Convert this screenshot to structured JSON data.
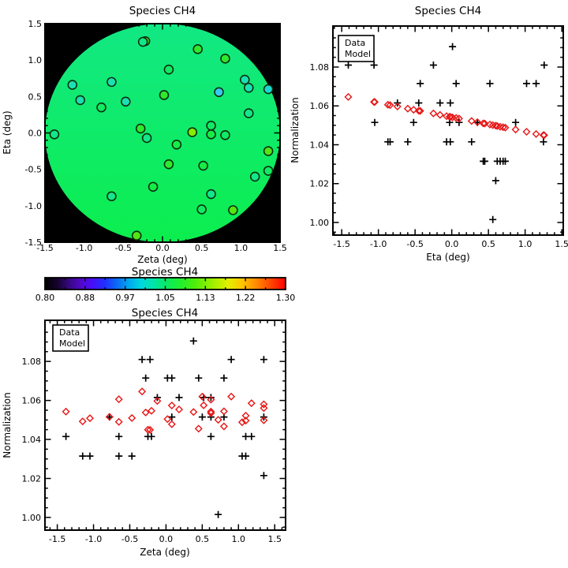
{
  "figure": {
    "background": "#ffffff",
    "frame_color": "#000000",
    "legend": {
      "data_label": "Data",
      "model_label": "Model",
      "data_color": "#000000",
      "model_color": "#e81414"
    }
  },
  "chart_data": [
    {
      "id": "field_map",
      "type": "scatter",
      "title": "Species CH4",
      "xlabel": "Zeta (deg)",
      "ylabel": "Eta (deg)",
      "xlim": [
        -1.5,
        1.5
      ],
      "ylim": [
        -1.5,
        1.5
      ],
      "x_ticks": [
        -1.5,
        -1.0,
        -0.5,
        0.0,
        0.5,
        1.0,
        1.5
      ],
      "y_ticks": [
        -1.5,
        -1.0,
        -0.5,
        0.0,
        0.5,
        1.0,
        1.5
      ],
      "x_tick_labels": [
        "-1.5",
        "-1.0",
        "-0.5",
        "0.0",
        "0.5",
        "1.0",
        "1.5"
      ],
      "y_tick_labels": [
        "-1.5",
        "-1.0",
        "-0.5",
        "0.0",
        "0.5",
        "1.0",
        "1.5"
      ],
      "minor_step": 0.1,
      "background": "#000000",
      "disk": {
        "cx": 0.0,
        "cy": 0.0,
        "rx": 1.5,
        "ry": 1.5,
        "color_top": "#12e884",
        "color_bottom": "#0cee4e"
      },
      "marker": {
        "shape": "circle",
        "outline": "#0a300f",
        "radius_px": 5.5
      },
      "points": [
        [
          -0.22,
          1.26,
          "#55e414"
        ],
        [
          -0.25,
          1.25,
          "#12e88a"
        ],
        [
          0.45,
          1.15,
          "#2fe930"
        ],
        [
          0.8,
          1.02,
          "#2fe930"
        ],
        [
          0.08,
          0.87,
          "#10ea64"
        ],
        [
          -0.65,
          0.7,
          "#1ce0b4"
        ],
        [
          -1.15,
          0.66,
          "#1ce0b4"
        ],
        [
          1.05,
          0.73,
          "#1ce0b4"
        ],
        [
          0.72,
          0.56,
          "#38c8f0"
        ],
        [
          1.1,
          0.62,
          "#1ce0b4"
        ],
        [
          1.35,
          0.6,
          "#1cd8d0"
        ],
        [
          0.02,
          0.52,
          "#2fe930"
        ],
        [
          -1.05,
          0.45,
          "#1ce0b4"
        ],
        [
          -0.47,
          0.43,
          "#1ce0b4"
        ],
        [
          -0.78,
          0.35,
          "#10ea64"
        ],
        [
          1.1,
          0.27,
          "#12e88a"
        ],
        [
          0.62,
          0.1,
          "#10ea64"
        ],
        [
          -0.28,
          0.06,
          "#2fe930"
        ],
        [
          0.38,
          0.01,
          "#86ec00"
        ],
        [
          0.62,
          -0.02,
          "#16ec46"
        ],
        [
          0.8,
          -0.03,
          "#10ea64"
        ],
        [
          -1.38,
          -0.02,
          "#12e88a"
        ],
        [
          -0.2,
          -0.07,
          "#12e88a"
        ],
        [
          0.18,
          -0.16,
          "#16ec46"
        ],
        [
          1.35,
          -0.25,
          "#55e414"
        ],
        [
          0.08,
          -0.43,
          "#2fe930"
        ],
        [
          0.52,
          -0.45,
          "#16ec46"
        ],
        [
          1.35,
          -0.52,
          "#10ea64"
        ],
        [
          1.18,
          -0.6,
          "#12e88a"
        ],
        [
          -0.12,
          -0.74,
          "#16ec46"
        ],
        [
          0.62,
          -0.84,
          "#12e88a"
        ],
        [
          -0.65,
          -0.87,
          "#12e88a"
        ],
        [
          0.5,
          -1.05,
          "#10ea64"
        ],
        [
          0.9,
          -1.06,
          "#55e414"
        ],
        [
          -0.33,
          -1.41,
          "#55e414"
        ]
      ]
    },
    {
      "id": "norm_vs_eta",
      "type": "scatter",
      "title": "Species CH4",
      "xlabel": "Eta (deg)",
      "ylabel": "Normalization",
      "xlim": [
        -1.62,
        1.52
      ],
      "ylim": [
        0.9935,
        1.1011
      ],
      "x_ticks": [
        -1.5,
        -1.0,
        -0.5,
        0.0,
        0.5,
        1.0,
        1.5
      ],
      "y_ticks": [
        1.0,
        1.02,
        1.04,
        1.06,
        1.08
      ],
      "x_tick_labels": [
        "-1.5",
        "-1.0",
        "-0.5",
        "0.0",
        "0.5",
        "1.0",
        "1.5"
      ],
      "y_tick_labels": [
        "1.00",
        "1.02",
        "1.04",
        "1.06",
        "1.08"
      ],
      "minor_step": 0.1,
      "y_minor_step": 0.005,
      "legend_position": "top-left",
      "series": [
        {
          "name": "Data",
          "marker": "plus",
          "color": "#000000",
          "points": [
            [
              1.26,
              1.081
            ],
            [
              1.25,
              1.0415
            ],
            [
              1.15,
              1.0715
            ],
            [
              1.02,
              1.0715
            ],
            [
              0.87,
              1.0515
            ],
            [
              0.7,
              1.0315
            ],
            [
              0.66,
              1.0315
            ],
            [
              0.73,
              1.0315
            ],
            [
              0.56,
              1.0015
            ],
            [
              0.62,
              1.0315
            ],
            [
              0.6,
              1.0215
            ],
            [
              0.52,
              1.0715
            ],
            [
              0.45,
              1.0315
            ],
            [
              0.43,
              1.0315
            ],
            [
              0.35,
              1.0515
            ],
            [
              0.27,
              1.0415
            ],
            [
              0.1,
              1.0515
            ],
            [
              0.06,
              1.0715
            ],
            [
              0.01,
              1.0905
            ],
            [
              -0.02,
              1.0615
            ],
            [
              -0.03,
              1.0515
            ],
            [
              -0.02,
              1.0415
            ],
            [
              -0.07,
              1.0415
            ],
            [
              -0.16,
              1.0615
            ],
            [
              -0.25,
              1.081
            ],
            [
              -0.43,
              1.0715
            ],
            [
              -0.45,
              1.0615
            ],
            [
              -0.52,
              1.0515
            ],
            [
              -0.6,
              1.0415
            ],
            [
              -0.74,
              1.0615
            ],
            [
              -0.84,
              1.0415
            ],
            [
              -0.87,
              1.0415
            ],
            [
              -1.05,
              1.0515
            ],
            [
              -1.06,
              1.081
            ],
            [
              -1.41,
              1.081
            ]
          ]
        },
        {
          "name": "Model",
          "marker": "diamond",
          "color": "#e81414",
          "points": [
            [
              1.26,
              1.0449
            ],
            [
              1.25,
              1.045
            ],
            [
              1.15,
              1.0455
            ],
            [
              1.02,
              1.0467
            ],
            [
              0.87,
              1.0478
            ],
            [
              0.7,
              1.049
            ],
            [
              0.66,
              1.0493
            ],
            [
              0.73,
              1.0488
            ],
            [
              0.56,
              1.0501
            ],
            [
              0.62,
              1.0496
            ],
            [
              0.6,
              1.0498
            ],
            [
              0.52,
              1.0504
            ],
            [
              0.45,
              1.0509
            ],
            [
              0.43,
              1.051
            ],
            [
              0.35,
              1.0516
            ],
            [
              0.27,
              1.0522
            ],
            [
              0.1,
              1.0535
            ],
            [
              0.06,
              1.0538
            ],
            [
              0.01,
              1.0541
            ],
            [
              -0.02,
              1.0543
            ],
            [
              -0.03,
              1.0544
            ],
            [
              -0.02,
              1.0543
            ],
            [
              -0.07,
              1.0547
            ],
            [
              -0.16,
              1.0554
            ],
            [
              -0.25,
              1.0561
            ],
            [
              -0.43,
              1.0574
            ],
            [
              -0.45,
              1.0575
            ],
            [
              -0.52,
              1.058
            ],
            [
              -0.6,
              1.0586
            ],
            [
              -0.74,
              1.0597
            ],
            [
              -0.84,
              1.0604
            ],
            [
              -0.87,
              1.0606
            ],
            [
              -1.05,
              1.062
            ],
            [
              -1.06,
              1.062
            ],
            [
              -1.41,
              1.0646
            ]
          ]
        }
      ]
    },
    {
      "id": "colorbar",
      "type": "heatmap",
      "title": "Species CH4",
      "range": [
        0.8,
        1.3
      ],
      "tick_labels": [
        "0.80",
        "0.88",
        "0.97",
        "1.05",
        "1.13",
        "1.22",
        "1.30"
      ],
      "gradient": [
        [
          0.0,
          "#000000"
        ],
        [
          0.05,
          "#16032c"
        ],
        [
          0.11,
          "#3c0890"
        ],
        [
          0.16,
          "#5408d8"
        ],
        [
          0.2,
          "#4410f8"
        ],
        [
          0.25,
          "#2030ff"
        ],
        [
          0.3,
          "#0a6cf4"
        ],
        [
          0.35,
          "#00aaee"
        ],
        [
          0.4,
          "#00d8dc"
        ],
        [
          0.45,
          "#00e4a8"
        ],
        [
          0.5,
          "#0ae868"
        ],
        [
          0.56,
          "#1eee30"
        ],
        [
          0.62,
          "#4cee0c"
        ],
        [
          0.69,
          "#96f000"
        ],
        [
          0.76,
          "#e2f000"
        ],
        [
          0.82,
          "#ffc400"
        ],
        [
          0.88,
          "#ff8800"
        ],
        [
          0.94,
          "#ff4400"
        ],
        [
          1.0,
          "#ff0000"
        ]
      ]
    },
    {
      "id": "norm_vs_zeta",
      "type": "scatter",
      "title": "Species CH4",
      "xlabel": "Zeta (deg)",
      "ylabel": "Normalization",
      "xlim": [
        -1.67,
        1.65
      ],
      "ylim": [
        0.9935,
        1.1011
      ],
      "x_ticks": [
        -1.5,
        -1.0,
        -0.5,
        0.0,
        0.5,
        1.0,
        1.5
      ],
      "y_ticks": [
        1.0,
        1.02,
        1.04,
        1.06,
        1.08
      ],
      "x_tick_labels": [
        "-1.5",
        "-1.0",
        "-0.5",
        "0.0",
        "0.5",
        "1.0",
        "1.5"
      ],
      "y_tick_labels": [
        "1.00",
        "1.02",
        "1.04",
        "1.06",
        "1.08"
      ],
      "minor_step": 0.1,
      "y_minor_step": 0.005,
      "legend_position": "top-left",
      "series": [
        {
          "name": "Data",
          "marker": "plus",
          "color": "#000000",
          "points": [
            [
              -0.22,
              1.081
            ],
            [
              -0.25,
              1.0415
            ],
            [
              0.45,
              1.0715
            ],
            [
              0.8,
              1.0715
            ],
            [
              0.08,
              1.0515
            ],
            [
              -0.65,
              1.0315
            ],
            [
              -1.15,
              1.0315
            ],
            [
              1.05,
              1.0315
            ],
            [
              0.72,
              1.0015
            ],
            [
              1.1,
              1.0315
            ],
            [
              1.35,
              1.0215
            ],
            [
              0.02,
              1.0715
            ],
            [
              -1.05,
              1.0315
            ],
            [
              -0.47,
              1.0315
            ],
            [
              -0.78,
              1.0515
            ],
            [
              1.1,
              1.0415
            ],
            [
              0.62,
              1.0515
            ],
            [
              -0.28,
              1.0715
            ],
            [
              0.38,
              1.0905
            ],
            [
              0.62,
              1.0615
            ],
            [
              0.8,
              1.0515
            ],
            [
              -1.38,
              1.0415
            ],
            [
              -0.2,
              1.0415
            ],
            [
              0.18,
              1.0615
            ],
            [
              1.35,
              1.081
            ],
            [
              0.08,
              1.0715
            ],
            [
              0.52,
              1.0615
            ],
            [
              1.35,
              1.0515
            ],
            [
              1.18,
              1.0415
            ],
            [
              -0.12,
              1.0615
            ],
            [
              0.62,
              1.0415
            ],
            [
              -0.65,
              1.0415
            ],
            [
              0.5,
              1.0515
            ],
            [
              0.9,
              1.081
            ],
            [
              -0.33,
              1.081
            ]
          ]
        },
        {
          "name": "Model",
          "marker": "diamond",
          "color": "#e81414",
          "points": [
            [
              -0.22,
              1.0449
            ],
            [
              -0.25,
              1.045
            ],
            [
              0.45,
              1.0455
            ],
            [
              0.8,
              1.0467
            ],
            [
              0.08,
              1.0478
            ],
            [
              -0.65,
              1.049
            ],
            [
              -1.15,
              1.0493
            ],
            [
              1.05,
              1.0488
            ],
            [
              0.72,
              1.0501
            ],
            [
              1.1,
              1.0496
            ],
            [
              1.35,
              1.0498
            ],
            [
              0.02,
              1.0504
            ],
            [
              -1.05,
              1.0509
            ],
            [
              -0.47,
              1.051
            ],
            [
              -0.78,
              1.0516
            ],
            [
              1.1,
              1.0522
            ],
            [
              0.62,
              1.0535
            ],
            [
              -0.28,
              1.0538
            ],
            [
              0.38,
              1.0541
            ],
            [
              0.62,
              1.0543
            ],
            [
              0.8,
              1.0544
            ],
            [
              -1.38,
              1.0543
            ],
            [
              -0.2,
              1.0547
            ],
            [
              0.18,
              1.0554
            ],
            [
              1.35,
              1.0561
            ],
            [
              0.08,
              1.0574
            ],
            [
              0.52,
              1.0575
            ],
            [
              1.35,
              1.058
            ],
            [
              1.18,
              1.0586
            ],
            [
              -0.12,
              1.0597
            ],
            [
              0.62,
              1.0604
            ],
            [
              -0.65,
              1.0606
            ],
            [
              0.5,
              1.062
            ],
            [
              0.9,
              1.062
            ],
            [
              -0.33,
              1.0646
            ]
          ]
        }
      ]
    }
  ]
}
